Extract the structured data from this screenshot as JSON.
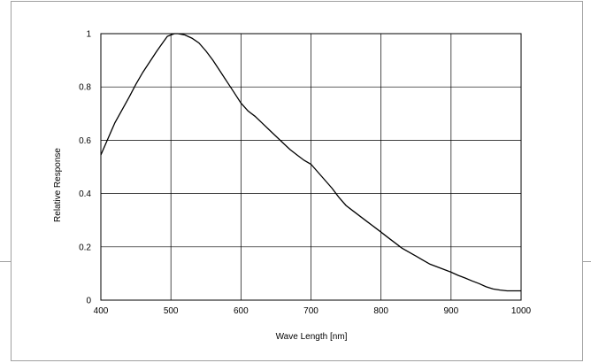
{
  "chart_data": {
    "type": "line",
    "title": "",
    "xlabel": "Wave Length [nm]",
    "ylabel": "Relative Response",
    "xlim": [
      400,
      1000
    ],
    "ylim": [
      0,
      1
    ],
    "xticks": [
      "400",
      "500",
      "600",
      "700",
      "800",
      "900",
      "1000"
    ],
    "yticks": [
      "0",
      "0.2",
      "0.4",
      "0.6",
      "0.8",
      "1"
    ],
    "grid": true,
    "legend": "none",
    "series": [
      {
        "color": "#000000",
        "x": [
          400,
          420,
          440,
          450,
          460,
          470,
          480,
          490,
          495,
          500,
          505,
          510,
          520,
          530,
          540,
          550,
          560,
          570,
          580,
          590,
          600,
          610,
          620,
          630,
          640,
          650,
          660,
          670,
          680,
          690,
          700,
          710,
          720,
          730,
          740,
          750,
          760,
          770,
          780,
          790,
          800,
          810,
          820,
          830,
          840,
          850,
          860,
          870,
          880,
          890,
          900,
          910,
          920,
          930,
          940,
          950,
          960,
          970,
          980,
          990,
          1000
        ],
        "y": [
          0.545,
          0.665,
          0.76,
          0.81,
          0.855,
          0.895,
          0.935,
          0.972,
          0.99,
          0.995,
          1.0,
          1.0,
          0.995,
          0.983,
          0.965,
          0.935,
          0.9,
          0.86,
          0.82,
          0.78,
          0.74,
          0.71,
          0.69,
          0.665,
          0.64,
          0.615,
          0.59,
          0.565,
          0.545,
          0.525,
          0.51,
          0.48,
          0.45,
          0.42,
          0.385,
          0.355,
          0.335,
          0.315,
          0.295,
          0.275,
          0.255,
          0.235,
          0.215,
          0.195,
          0.18,
          0.165,
          0.15,
          0.135,
          0.125,
          0.115,
          0.105,
          0.093,
          0.083,
          0.072,
          0.062,
          0.05,
          0.042,
          0.038,
          0.035,
          0.035,
          0.035
        ]
      }
    ]
  }
}
